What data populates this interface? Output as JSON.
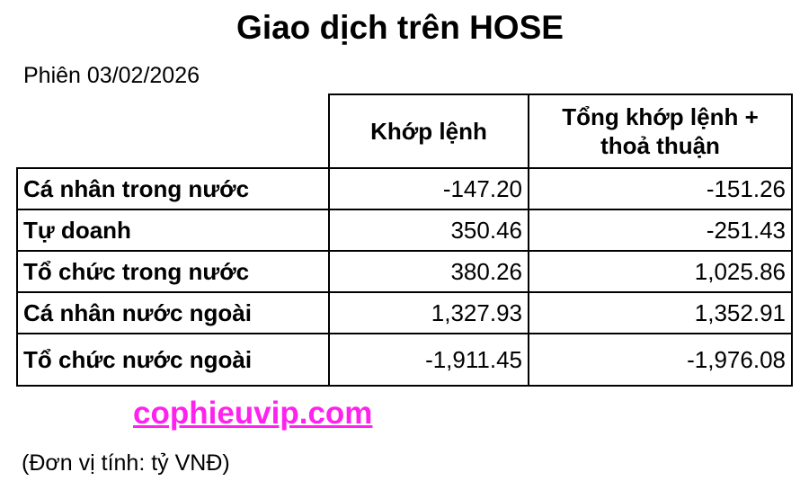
{
  "title": "Giao dịch trên HOSE",
  "session": "Phiên 03/02/2026",
  "headers": [
    "Khớp lệnh",
    "Tổng khớp lệnh + thoả thuận"
  ],
  "rows": [
    {
      "label": "Cá nhân trong nước",
      "matched": "-147.20",
      "total": "-151.26"
    },
    {
      "label": "Tự doanh",
      "matched": "350.46",
      "total": "-251.43"
    },
    {
      "label": "Tổ chức trong nước",
      "matched": "380.26",
      "total": "1,025.86"
    },
    {
      "label": "Cá nhân nước ngoài",
      "matched": "1,327.93",
      "total": "1,352.91"
    },
    {
      "label": "Tổ chức nước ngoài",
      "matched": "-1,911.45",
      "total": "-1,976.08"
    }
  ],
  "watermark": "cophieuvip.com",
  "unit": "(Đơn vị tính: tỷ VNĐ)",
  "colors": {
    "watermark": "#ff22ee"
  }
}
